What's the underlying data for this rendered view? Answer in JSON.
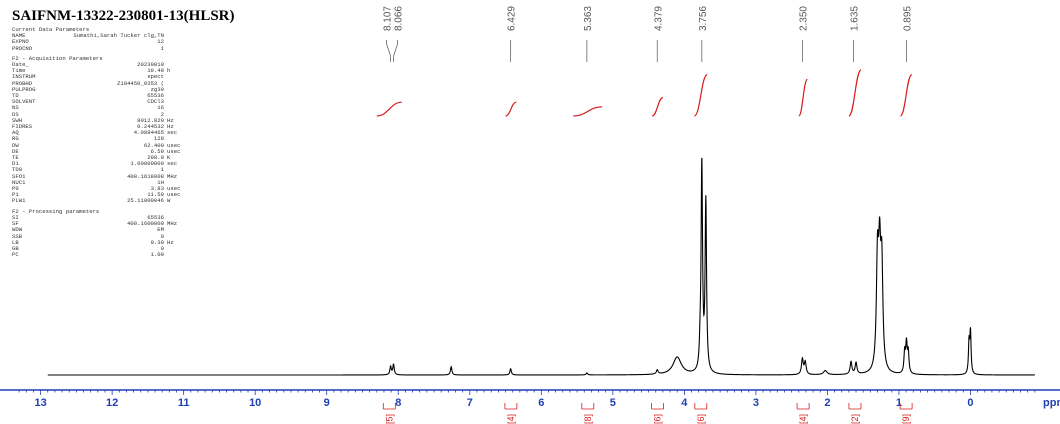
{
  "header": {
    "title": "SAIFNM-13322-230801-13(HLSR)"
  },
  "params": {
    "current_heading": "Current Data Parameters",
    "current": [
      {
        "key": "NAME",
        "value": "Sumathi,Sarah Tucker clg,TN",
        "unit": ""
      },
      {
        "key": "EXPNO",
        "value": "12",
        "unit": ""
      },
      {
        "key": "PROCNO",
        "value": "1",
        "unit": ""
      }
    ],
    "f2_acq_heading": "F2 - Acquisition Parameters",
    "f2_acq": [
      {
        "key": "Date_",
        "value": "20230810",
        "unit": ""
      },
      {
        "key": "Time",
        "value": "10.40",
        "unit": "h"
      },
      {
        "key": "INSTRUM",
        "value": "spect",
        "unit": ""
      },
      {
        "key": "PROBHD",
        "value": "Z104450_0353 (",
        "unit": ""
      },
      {
        "key": "PULPROG",
        "value": "zg30",
        "unit": ""
      },
      {
        "key": "TD",
        "value": "65536",
        "unit": ""
      },
      {
        "key": "SOLVENT",
        "value": "CDCl3",
        "unit": ""
      },
      {
        "key": "NS",
        "value": "16",
        "unit": ""
      },
      {
        "key": "DS",
        "value": "2",
        "unit": ""
      },
      {
        "key": "SWH",
        "value": "8012.820",
        "unit": "Hz"
      },
      {
        "key": "FIDRES",
        "value": "0.244532",
        "unit": "Hz"
      },
      {
        "key": "AQ",
        "value": "4.0894465",
        "unit": "sec"
      },
      {
        "key": "RG",
        "value": "128",
        "unit": ""
      },
      {
        "key": "DW",
        "value": "62.400",
        "unit": "usec"
      },
      {
        "key": "DE",
        "value": "6.50",
        "unit": "usec"
      },
      {
        "key": "TE",
        "value": "298.0",
        "unit": "K"
      },
      {
        "key": "D1",
        "value": "1.00000000",
        "unit": "sec"
      },
      {
        "key": "TD0",
        "value": "1",
        "unit": ""
      },
      {
        "key": "SFO1",
        "value": "400.1618008",
        "unit": "MHz"
      },
      {
        "key": "NUC1",
        "value": "1H",
        "unit": ""
      },
      {
        "key": "P0",
        "value": "3.83",
        "unit": "usec"
      },
      {
        "key": "P1",
        "value": "11.50",
        "unit": "usec"
      },
      {
        "key": "PLW1",
        "value": "25.11000046",
        "unit": "W"
      }
    ],
    "f2_proc_heading": "F2 - Processing parameters",
    "f2_proc": [
      {
        "key": "SI",
        "value": "65536",
        "unit": ""
      },
      {
        "key": "SF",
        "value": "400.1600000",
        "unit": "MHz"
      },
      {
        "key": "WDW",
        "value": "EM",
        "unit": ""
      },
      {
        "key": "SSB",
        "value": "0",
        "unit": ""
      },
      {
        "key": "LB",
        "value": "0.30",
        "unit": "Hz"
      },
      {
        "key": "GB",
        "value": "0",
        "unit": ""
      },
      {
        "key": "PC",
        "value": "1.00",
        "unit": ""
      }
    ]
  },
  "chart_data": {
    "type": "line",
    "xlabel": "ppm",
    "xlim": [
      13.4,
      -1.0
    ],
    "x_reversed": true,
    "ticks": [
      13,
      12,
      11,
      10,
      9,
      8,
      7,
      6,
      5,
      4,
      3,
      2,
      1,
      0
    ],
    "tick_labels": [
      "13",
      "12",
      "11",
      "10",
      "9",
      "8",
      "7",
      "6",
      "5",
      "4",
      "3",
      "2",
      "1",
      "0"
    ],
    "units_label": "ppm",
    "y_relative_max": 1.0,
    "peaks": [
      {
        "ppm": 8.107,
        "height": 0.04,
        "width": 0.012
      },
      {
        "ppm": 8.066,
        "height": 0.05,
        "width": 0.012
      },
      {
        "ppm": 7.26,
        "height": 0.04,
        "width": 0.012
      },
      {
        "ppm": 6.429,
        "height": 0.03,
        "width": 0.012
      },
      {
        "ppm": 5.363,
        "height": 0.01,
        "width": 0.012
      },
      {
        "ppm": 4.379,
        "height": 0.02,
        "width": 0.015
      },
      {
        "ppm": 4.1,
        "height": 0.085,
        "width": 0.07
      },
      {
        "ppm": 3.78,
        "height": 0.08,
        "width": 0.012
      },
      {
        "ppm": 3.756,
        "height": 1.0,
        "width": 0.012
      },
      {
        "ppm": 3.7,
        "height": 0.82,
        "width": 0.012
      },
      {
        "ppm": 2.35,
        "height": 0.075,
        "width": 0.015
      },
      {
        "ppm": 2.31,
        "height": 0.06,
        "width": 0.015
      },
      {
        "ppm": 2.03,
        "height": 0.02,
        "width": 0.03
      },
      {
        "ppm": 1.67,
        "height": 0.06,
        "width": 0.015
      },
      {
        "ppm": 1.6,
        "height": 0.055,
        "width": 0.015
      },
      {
        "ppm": 1.3,
        "height": 0.52,
        "width": 0.018
      },
      {
        "ppm": 1.27,
        "height": 0.5,
        "width": 0.018
      },
      {
        "ppm": 1.24,
        "height": 0.48,
        "width": 0.018
      },
      {
        "ppm": 0.92,
        "height": 0.1,
        "width": 0.012
      },
      {
        "ppm": 0.895,
        "height": 0.14,
        "width": 0.012
      },
      {
        "ppm": 0.87,
        "height": 0.1,
        "width": 0.012
      },
      {
        "ppm": 0.02,
        "height": 0.15,
        "width": 0.01
      },
      {
        "ppm": 0.0,
        "height": 0.2,
        "width": 0.01
      }
    ],
    "peak_labels": [
      {
        "ppm": 8.107,
        "text": "8.107",
        "group": 1
      },
      {
        "ppm": 8.066,
        "text": "8.066",
        "group": 1
      },
      {
        "ppm": 6.429,
        "text": "6.429",
        "group": 2
      },
      {
        "ppm": 5.363,
        "text": "5.363",
        "group": 3
      },
      {
        "ppm": 4.379,
        "text": "4.379",
        "group": 4
      },
      {
        "ppm": 3.756,
        "text": "3.756",
        "group": 5
      },
      {
        "ppm": 2.35,
        "text": "2.350",
        "group": 6
      },
      {
        "ppm": 1.635,
        "text": "1.635",
        "group": 7
      },
      {
        "ppm": 0.895,
        "text": "0.895",
        "group": 8
      }
    ],
    "integrals": [
      {
        "from": 8.3,
        "to": 7.95,
        "rise": 0.3,
        "label": "[5]"
      },
      {
        "from": 6.5,
        "to": 6.35,
        "rise": 0.3,
        "label": "[4]"
      },
      {
        "from": 5.55,
        "to": 5.15,
        "rise": 0.2,
        "label": "[8]"
      },
      {
        "from": 4.45,
        "to": 4.3,
        "rise": 0.4,
        "label": "[6]"
      },
      {
        "from": 3.86,
        "to": 3.68,
        "rise": 0.9,
        "label": "[6]"
      },
      {
        "from": 2.4,
        "to": 2.28,
        "rise": 0.8,
        "label": "[4]"
      },
      {
        "from": 1.7,
        "to": 1.53,
        "rise": 1.0,
        "label": "[2]"
      },
      {
        "from": 0.98,
        "to": 0.82,
        "rise": 0.9,
        "label": "[9]"
      }
    ],
    "colors": {
      "spectrum": "#000000",
      "axis": "#1f3fb5",
      "integral": "#d81b1b",
      "label": "#555555"
    }
  }
}
